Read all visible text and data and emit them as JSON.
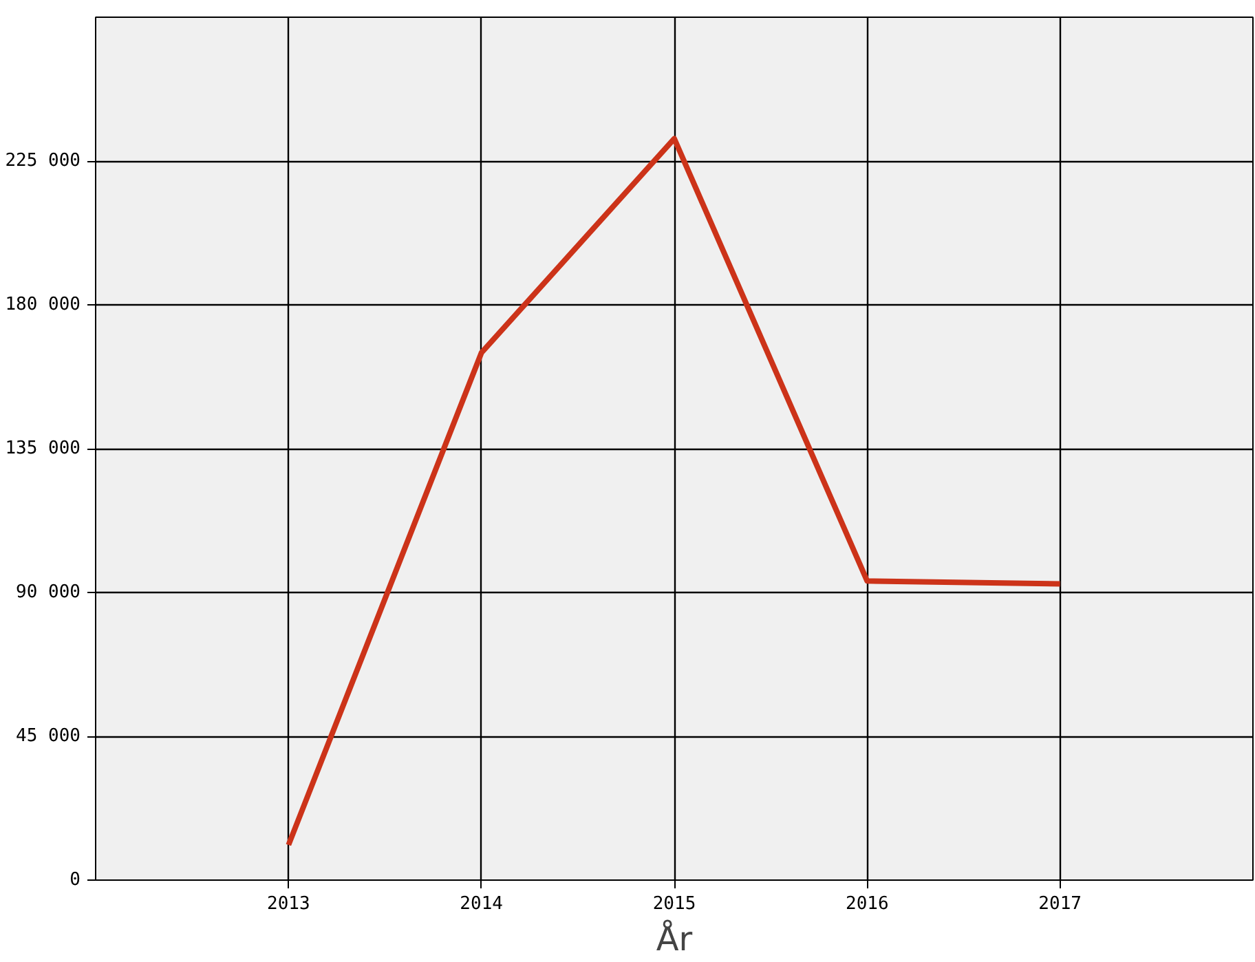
{
  "chart_data": {
    "type": "line",
    "xlabel": "År",
    "x": [
      2013,
      2014,
      2015,
      2016,
      2017
    ],
    "series": [
      {
        "color": "#cc3319",
        "values": [
          11000,
          165000,
          232000,
          93600,
          92700
        ]
      }
    ],
    "xlim": [
      2012,
      2018
    ],
    "xticks": [
      2013,
      2014,
      2015,
      2016,
      2017
    ],
    "ylim": [
      0,
      270000
    ],
    "yticks": [
      {
        "value": 0,
        "label": "0"
      },
      {
        "value": 45000,
        "label": "45 000"
      },
      {
        "value": 90000,
        "label": "90 000"
      },
      {
        "value": 135000,
        "label": "135 000"
      },
      {
        "value": 180000,
        "label": "180 000"
      },
      {
        "value": 225000,
        "label": "225 000"
      }
    ],
    "grid": true,
    "marker": "none",
    "line_style": "solid"
  }
}
